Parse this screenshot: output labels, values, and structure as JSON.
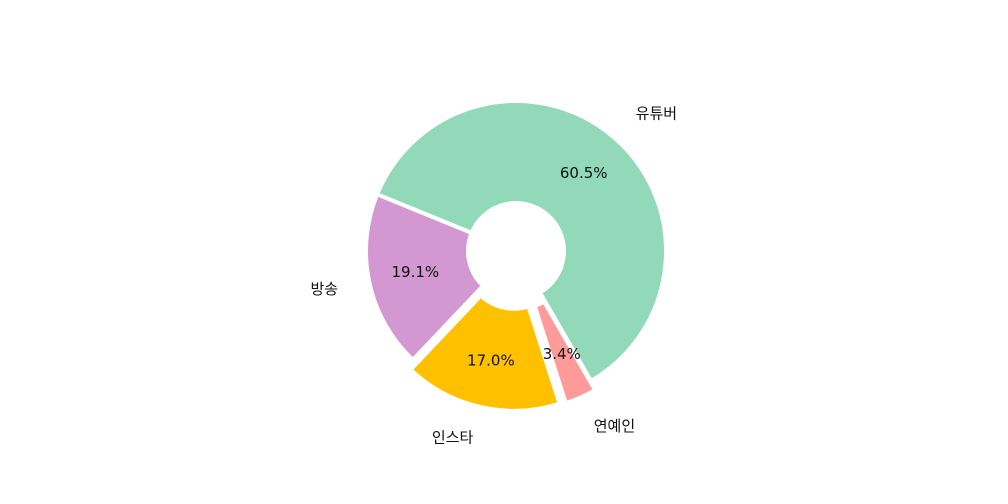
{
  "chart_data": {
    "type": "pie",
    "donut": true,
    "title": "",
    "categories": [
      "유튜버",
      "방송",
      "인스타",
      "연예인"
    ],
    "values": [
      60.5,
      19.1,
      17.0,
      3.4
    ],
    "percent_labels": [
      "60.5%",
      "19.1%",
      "17.0%",
      "3.4%"
    ],
    "colors": [
      "#91d9b8",
      "#d397d1",
      "#ffc000",
      "#ff9a9a"
    ],
    "exploded": [
      false,
      false,
      true,
      true
    ],
    "start_angle_deg": 300,
    "direction": "counterclockwise",
    "legend": "none"
  }
}
